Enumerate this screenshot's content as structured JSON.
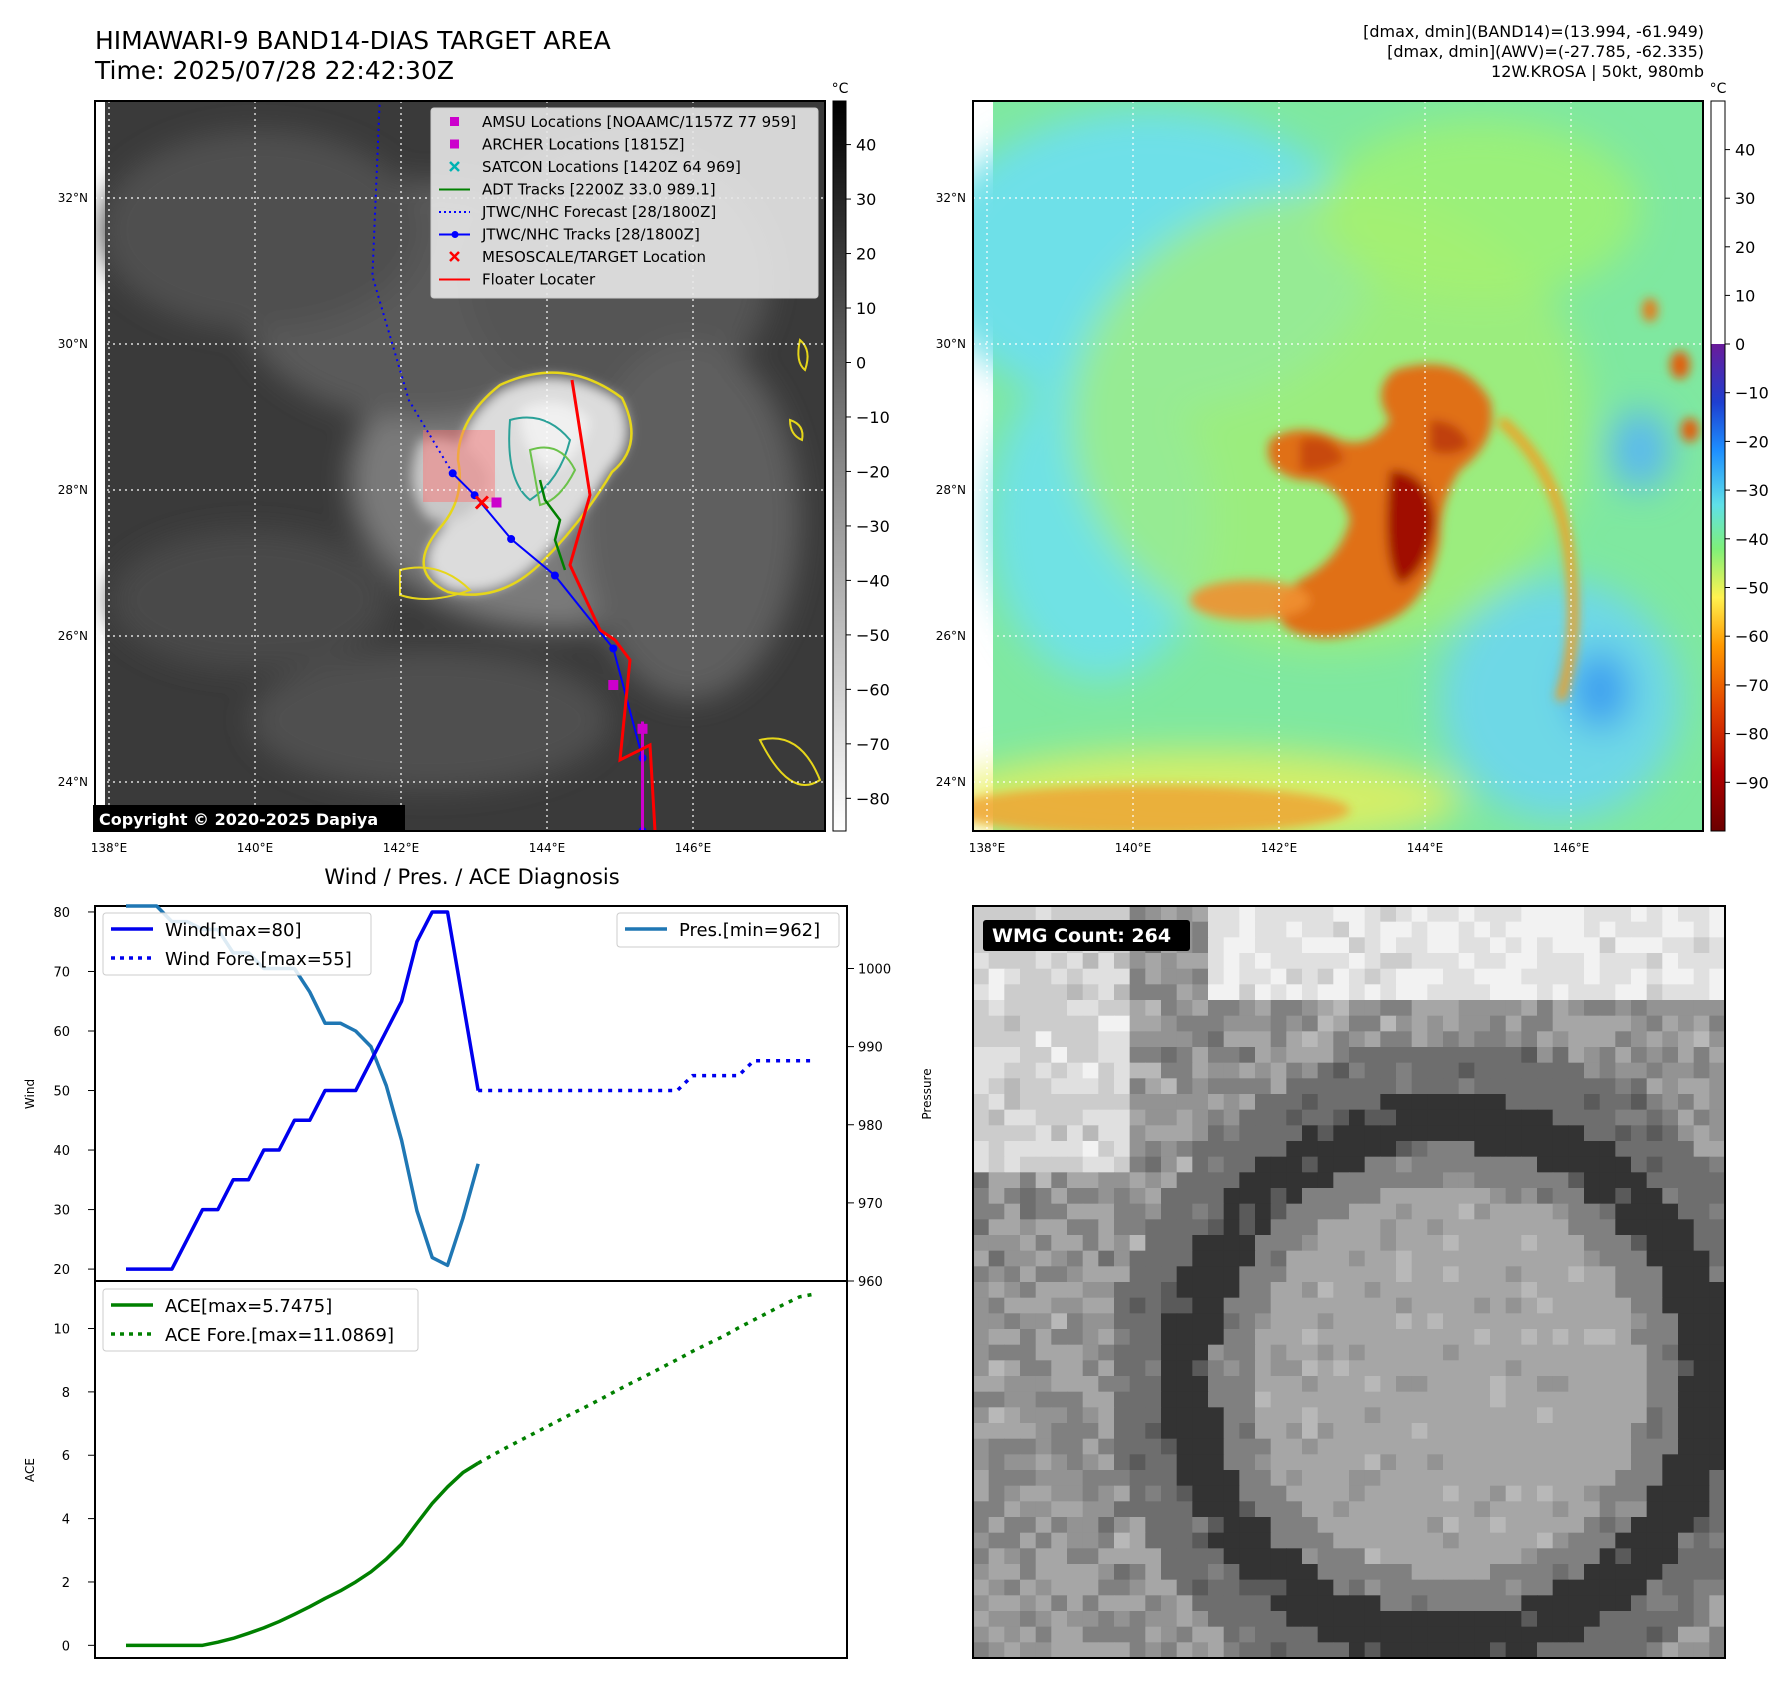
{
  "header": {
    "title": "HIMAWARI-9 BAND14-DIAS TARGET AREA",
    "time": "Time: 2025/07/28 22:42:30Z",
    "info_line1": "[dmax, dmin](BAND14)=(13.994, -61.949)",
    "info_line2": "[dmax, dmin](AWV)=(-27.785, -62.335)",
    "info_line3": "12W.KROSA | 50kt, 980mb"
  },
  "map_axes": {
    "lon_ticks": [
      "138°E",
      "140°E",
      "142°E",
      "144°E",
      "146°E"
    ],
    "lat_ticks": [
      "32°N",
      "30°N",
      "28°N",
      "26°N",
      "24°N"
    ],
    "lon_range": [
      137.8,
      147.8
    ],
    "lat_range": [
      23.4,
      33.4
    ]
  },
  "ir_map": {
    "copyright": "Copyright © 2020-2025 Dapiya",
    "colorbar_unit": "°C",
    "colorbar_ticks": [
      "40",
      "30",
      "20",
      "10",
      "0",
      "−10",
      "−20",
      "−30",
      "−40",
      "−50",
      "−60",
      "−70",
      "−80"
    ],
    "legend": [
      {
        "label": "AMSU Locations [NOAAMC/1157Z 77 959]",
        "marker": "square",
        "color": "#cc00cc"
      },
      {
        "label": "ARCHER Locations [1815Z]",
        "marker": "square",
        "color": "#cc00cc"
      },
      {
        "label": "SATCON Locations [1420Z 64 969]",
        "marker": "x",
        "color": "#00b3b3"
      },
      {
        "label": "ADT Tracks [2200Z 33.0 989.1]",
        "marker": "line",
        "color": "#008000"
      },
      {
        "label": "JTWC/NHC Forecast [28/1800Z]",
        "marker": "dotted",
        "color": "#0000ff"
      },
      {
        "label": "JTWC/NHC Tracks [28/1800Z]",
        "marker": "line-dot",
        "color": "#0000ff"
      },
      {
        "label": "MESOSCALE/TARGET Location",
        "marker": "x",
        "color": "#ff0000"
      },
      {
        "label": "Floater Locater",
        "marker": "line",
        "color": "#ff0000"
      }
    ],
    "jtwc_track": [
      [
        145.3,
        23.4
      ],
      [
        145.3,
        24.4
      ],
      [
        144.9,
        25.9
      ],
      [
        144.1,
        26.9
      ],
      [
        143.5,
        27.4
      ],
      [
        143.0,
        28.0
      ],
      [
        142.7,
        28.3
      ]
    ],
    "jtwc_forecast": [
      [
        142.7,
        28.3
      ],
      [
        142.1,
        29.3
      ],
      [
        141.6,
        31.0
      ],
      [
        141.7,
        33.4
      ]
    ],
    "target_location": [
      143.1,
      27.9
    ],
    "amsu_points": [
      [
        144.9,
        25.4
      ],
      [
        145.3,
        24.8
      ],
      [
        143.3,
        27.9
      ]
    ],
    "target_box": [
      142.3,
      27.8,
      143.3,
      28.8
    ]
  },
  "wv_map": {
    "colorbar_unit": "°C",
    "colorbar_ticks": [
      "40",
      "30",
      "20",
      "10",
      "0",
      "−10",
      "−20",
      "−30",
      "−40",
      "−50",
      "−60",
      "−70",
      "−80",
      "−90"
    ]
  },
  "diagnosis": {
    "title": "Wind / Pres. / ACE Diagnosis",
    "wind_ylabel": "Wind",
    "pres_ylabel": "Pressure",
    "ace_ylabel": "ACE",
    "wind_ticks": [
      "20",
      "30",
      "40",
      "50",
      "60",
      "70",
      "80"
    ],
    "pres_ticks": [
      "960",
      "970",
      "980",
      "990",
      "1000"
    ],
    "ace_ticks": [
      "0",
      "2",
      "4",
      "6",
      "8",
      "10"
    ],
    "wind_legend": [
      "Wind[max=80]",
      "Wind Fore.[max=55]"
    ],
    "pres_legend": "Pres.[min=962]",
    "ace_legend": [
      "ACE[max=5.7475]",
      "ACE Fore.[max=11.0869]"
    ]
  },
  "chart_data": [
    {
      "type": "line",
      "title": "Wind / Pres. / ACE Diagnosis",
      "ylabel": "Wind",
      "ylim": [
        18,
        81
      ],
      "series": [
        {
          "name": "Wind[max=80]",
          "color": "#0000ee",
          "style": "solid",
          "x": [
            0,
            1,
            2,
            3,
            4,
            5,
            6,
            7,
            8,
            9,
            10,
            11,
            12,
            13,
            14,
            15,
            16,
            17,
            18,
            19,
            20,
            21,
            22,
            23
          ],
          "values": [
            20,
            20,
            20,
            20,
            25,
            30,
            30,
            35,
            35,
            40,
            40,
            45,
            45,
            50,
            50,
            50,
            55,
            60,
            65,
            75,
            80,
            80,
            65,
            50
          ]
        },
        {
          "name": "Wind Fore.[max=55]",
          "color": "#0000ee",
          "style": "dotted",
          "x": [
            23,
            24,
            25,
            26,
            27,
            28,
            29,
            30,
            31,
            32,
            33,
            34,
            35,
            36,
            37,
            38,
            39,
            40,
            41,
            42,
            43,
            44,
            45
          ],
          "values": [
            50,
            50,
            50,
            50,
            50,
            50,
            50,
            50,
            50,
            50,
            50,
            50,
            50,
            50,
            52.5,
            52.5,
            52.5,
            52.5,
            55,
            55,
            55,
            55,
            55
          ]
        }
      ]
    },
    {
      "type": "line",
      "ylabel": "Pressure",
      "ylim": [
        960,
        1008
      ],
      "series": [
        {
          "name": "Pres.[min=962]",
          "color": "#1f77b4",
          "style": "solid",
          "x": [
            0,
            1,
            2,
            3,
            4,
            5,
            6,
            7,
            8,
            9,
            10,
            11,
            12,
            13,
            14,
            15,
            16,
            17,
            18,
            19,
            20,
            21,
            22,
            23
          ],
          "values": [
            1008,
            1008,
            1008,
            1006,
            1006,
            1005,
            1005,
            1002,
            1002,
            1000,
            1000,
            1000,
            997,
            993,
            993,
            992,
            990,
            985,
            978,
            969,
            963,
            962,
            968,
            975
          ]
        }
      ]
    },
    {
      "type": "line",
      "ylabel": "ACE",
      "ylim": [
        -0.4,
        11.5
      ],
      "series": [
        {
          "name": "ACE[max=5.7475]",
          "color": "#008000",
          "style": "solid",
          "x": [
            0,
            1,
            2,
            3,
            4,
            5,
            6,
            7,
            8,
            9,
            10,
            11,
            12,
            13,
            14,
            15,
            16,
            17,
            18,
            19,
            20,
            21,
            22,
            23
          ],
          "values": [
            0,
            0,
            0,
            0,
            0,
            0,
            0.1,
            0.22,
            0.38,
            0.55,
            0.75,
            0.98,
            1.22,
            1.48,
            1.72,
            2.0,
            2.32,
            2.72,
            3.2,
            3.85,
            4.48,
            5.0,
            5.45,
            5.75
          ]
        },
        {
          "name": "ACE Fore.[max=11.0869]",
          "color": "#008000",
          "style": "dotted",
          "x": [
            23,
            24,
            25,
            26,
            27,
            28,
            29,
            30,
            31,
            32,
            33,
            34,
            35,
            36,
            37,
            38,
            39,
            40,
            41,
            42,
            43,
            44,
            45
          ],
          "values": [
            5.75,
            6.02,
            6.28,
            6.53,
            6.78,
            7.03,
            7.28,
            7.52,
            7.77,
            8.03,
            8.28,
            8.52,
            8.77,
            9.02,
            9.28,
            9.52,
            9.75,
            10.02,
            10.27,
            10.52,
            10.77,
            11.0,
            11.09
          ]
        }
      ]
    }
  ],
  "wmg": {
    "label": "WMG Count: 264"
  }
}
